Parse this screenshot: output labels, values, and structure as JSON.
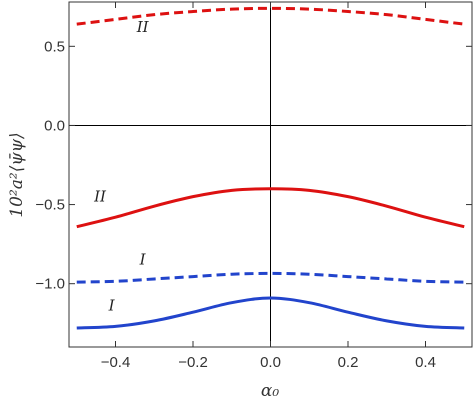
{
  "chart_data": {
    "type": "line",
    "title": "",
    "xlabel": "α₀",
    "ylabel": "10²a²⟨ψ̄ψ⟩",
    "xlim": [
      -0.52,
      0.52
    ],
    "ylim": [
      -1.4,
      0.78
    ],
    "x_ticks": [
      {
        "value": -0.4,
        "label": "−0.4"
      },
      {
        "value": -0.2,
        "label": "−0.2"
      },
      {
        "value": 0.0,
        "label": "0.0"
      },
      {
        "value": 0.2,
        "label": "0.2"
      },
      {
        "value": 0.4,
        "label": "0.4"
      }
    ],
    "y_ticks": [
      {
        "value": 0.5,
        "label": "0.5"
      },
      {
        "value": 0.0,
        "label": "0.0"
      },
      {
        "value": -0.5,
        "label": "−0.5"
      },
      {
        "value": -1.0,
        "label": "−1.0"
      }
    ],
    "grid": false,
    "reference_lines": {
      "x": 0,
      "y": 0
    },
    "x": [
      -0.5,
      -0.4,
      -0.3,
      -0.2,
      -0.1,
      0.0,
      0.1,
      0.2,
      0.3,
      0.4,
      0.5
    ],
    "series": [
      {
        "label": "II",
        "color": "#dd1111",
        "dash": "dashed",
        "values": [
          0.64,
          0.67,
          0.7,
          0.72,
          0.735,
          0.74,
          0.735,
          0.72,
          0.7,
          0.67,
          0.64
        ]
      },
      {
        "label": "II",
        "color": "#dd1111",
        "dash": "solid",
        "values": [
          -0.64,
          -0.58,
          -0.51,
          -0.45,
          -0.41,
          -0.4,
          -0.41,
          -0.45,
          -0.51,
          -0.58,
          -0.64
        ]
      },
      {
        "label": "I",
        "color": "#2244cc",
        "dash": "dashed",
        "values": [
          -0.99,
          -0.985,
          -0.97,
          -0.955,
          -0.94,
          -0.935,
          -0.94,
          -0.955,
          -0.97,
          -0.985,
          -0.99
        ]
      },
      {
        "label": "I",
        "color": "#2244cc",
        "dash": "solid",
        "values": [
          -1.28,
          -1.27,
          -1.235,
          -1.18,
          -1.12,
          -1.09,
          -1.12,
          -1.18,
          -1.235,
          -1.27,
          -1.28
        ]
      }
    ],
    "curve_labels": [
      {
        "text": "II",
        "x": -0.33,
        "y": 0.59
      },
      {
        "text": "II",
        "x": -0.44,
        "y": -0.48
      },
      {
        "text": "I",
        "x": -0.33,
        "y": -0.88
      },
      {
        "text": "I",
        "x": -0.41,
        "y": -1.17
      }
    ]
  }
}
